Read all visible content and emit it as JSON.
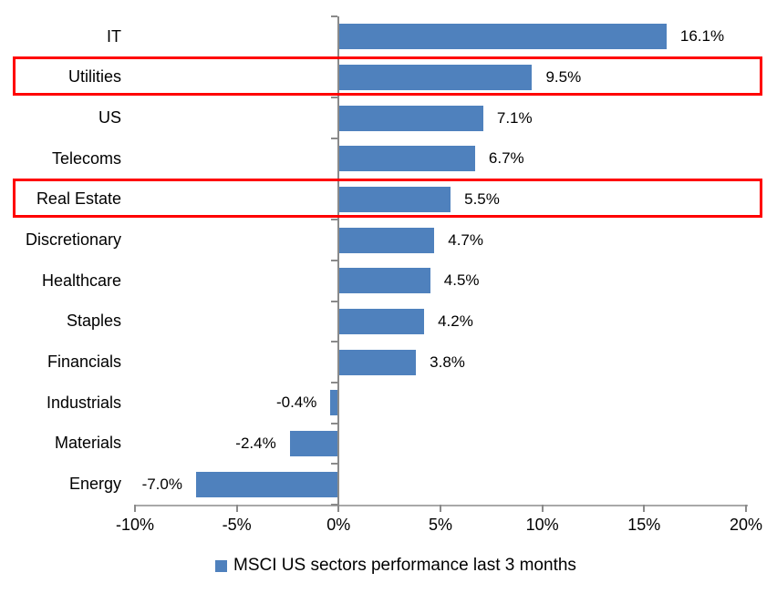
{
  "chart_data": {
    "type": "bar",
    "orientation": "horizontal",
    "title": "",
    "xlabel": "",
    "ylabel": "",
    "categories": [
      "IT",
      "Utilities",
      "US",
      "Telecoms",
      "Real Estate",
      "Discretionary",
      "Healthcare",
      "Staples",
      "Financials",
      "Industrials",
      "Materials",
      "Energy"
    ],
    "values": [
      16.1,
      9.5,
      7.1,
      6.7,
      5.5,
      4.7,
      4.5,
      4.2,
      3.8,
      -0.4,
      -2.4,
      -7.0
    ],
    "value_labels": [
      "16.1%",
      "9.5%",
      "7.1%",
      "6.7%",
      "5.5%",
      "4.7%",
      "4.5%",
      "4.2%",
      "3.8%",
      "-0.4%",
      "-2.4%",
      "-7.0%"
    ],
    "x_ticks": [
      {
        "label": "-10%",
        "value": -10
      },
      {
        "label": "-5%",
        "value": -5
      },
      {
        "label": "0%",
        "value": 0
      },
      {
        "label": "5%",
        "value": 5
      },
      {
        "label": "10%",
        "value": 10
      },
      {
        "label": "15%",
        "value": 15
      },
      {
        "label": "20%",
        "value": 20
      }
    ],
    "x_range": [
      -10,
      20
    ],
    "grid": false,
    "legend_position": "bottom",
    "legend": "MSCI US sectors performance last 3 months",
    "bar_color": "#4F81BD",
    "highlight_color": "#FF0000",
    "highlighted_categories": [
      "Utilities",
      "Real Estate"
    ]
  }
}
